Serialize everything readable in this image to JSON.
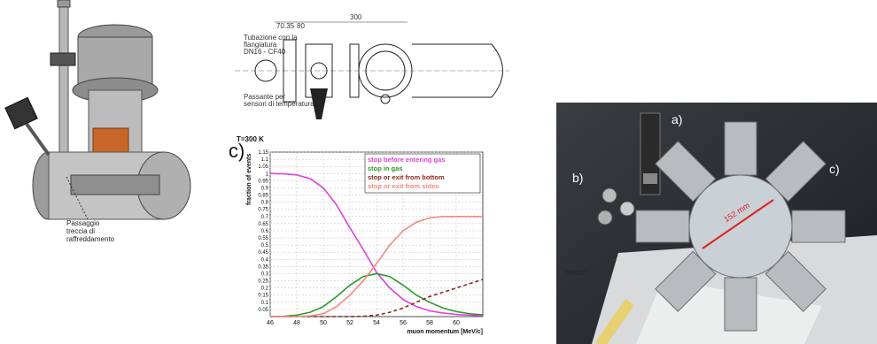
{
  "labels": {
    "a": "a)",
    "b": "b)",
    "c": "c)"
  },
  "cryostat_caption": [
    "Passaggio",
    "treccia di",
    "raffreddamento"
  ],
  "drawing_notes": {
    "dim_top": "300",
    "dim_left1": "70.35",
    "dim_left2": "80",
    "note1": [
      "Tubazione con la",
      "flangiatura",
      "DN16 - CF40"
    ],
    "note2": [
      "Passante per",
      "sensori di temperatura"
    ]
  },
  "photo_labels": {
    "a": "a)",
    "b": "b)",
    "c": "c)",
    "dim": "152 mm",
    "brand": "nexon"
  },
  "colors": {
    "magenta": "#e040e0",
    "green": "#2a9a2a",
    "brown": "#8a2a1a",
    "salmon": "#f08a80"
  },
  "chart_data": {
    "type": "line",
    "title": "T=300 K",
    "xlabel": "muon momentum [MeV/c]",
    "ylabel": "fraction of events",
    "xlim": [
      46,
      62
    ],
    "ylim": [
      0,
      1.15
    ],
    "xticks": [
      "46",
      "48",
      "50",
      "52",
      "54",
      "56",
      "58",
      "60"
    ],
    "yticks": [
      "0.05",
      "0.1",
      "0.15",
      "0.2",
      "0.25",
      "0.3",
      "0.35",
      "0.4",
      "0.45",
      "0.5",
      "0.55",
      "0.6",
      "0.65",
      "0.7",
      "0.75",
      "0.8",
      "0.85",
      "0.9",
      "0.95",
      "1",
      "1.05",
      "1.1",
      "1.15"
    ],
    "grid": true,
    "legend_position": "top-right",
    "series": [
      {
        "name": "stop before entering gas",
        "color": "#e040e0",
        "style": "solid",
        "x": [
          46,
          47,
          48,
          49,
          50,
          51,
          52,
          53,
          54,
          55,
          56,
          57,
          58,
          59,
          60,
          61,
          62
        ],
        "y": [
          1.0,
          0.998,
          0.99,
          0.965,
          0.9,
          0.78,
          0.62,
          0.47,
          0.31,
          0.2,
          0.12,
          0.07,
          0.04,
          0.025,
          0.015,
          0.01,
          0.005
        ]
      },
      {
        "name": "stop in gas",
        "color": "#2a9a2a",
        "style": "solid",
        "x": [
          46,
          47,
          48,
          49,
          50,
          51,
          52,
          53,
          54,
          55,
          56,
          57,
          58,
          59,
          60,
          61,
          62
        ],
        "y": [
          0.0,
          0.002,
          0.01,
          0.03,
          0.07,
          0.14,
          0.22,
          0.28,
          0.3,
          0.28,
          0.22,
          0.15,
          0.1,
          0.06,
          0.035,
          0.02,
          0.012
        ]
      },
      {
        "name": "stop or exit from bottom",
        "color": "#8a2a1a",
        "style": "dashed",
        "x": [
          46,
          48,
          50,
          52,
          53,
          54,
          55,
          56,
          57,
          58,
          59,
          60,
          61,
          62
        ],
        "y": [
          0,
          0,
          0,
          0,
          0.002,
          0.01,
          0.03,
          0.06,
          0.1,
          0.14,
          0.17,
          0.2,
          0.23,
          0.26
        ]
      },
      {
        "name": "stop or exit from sides",
        "color": "#f08a80",
        "style": "solid",
        "x": [
          46,
          47,
          48,
          49,
          50,
          51,
          52,
          53,
          54,
          55,
          56,
          57,
          58,
          59,
          60,
          61,
          62
        ],
        "y": [
          0,
          0,
          0,
          0.005,
          0.02,
          0.07,
          0.15,
          0.25,
          0.37,
          0.5,
          0.6,
          0.66,
          0.69,
          0.7,
          0.7,
          0.7,
          0.7
        ]
      }
    ]
  }
}
